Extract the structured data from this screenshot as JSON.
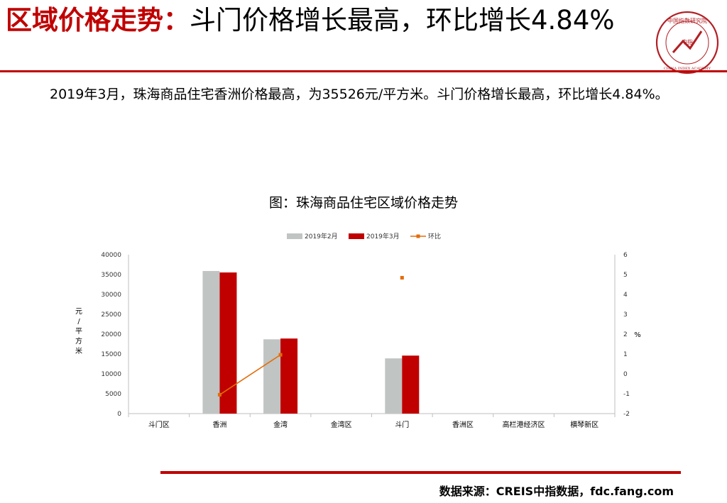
{
  "header": {
    "title_highlight": "区域价格走势：",
    "title_rest": "斗门价格增长最高，环比增长4.84%"
  },
  "logo": {
    "text_cn": "中国指数研究院",
    "text_en": "CHINA INDEX ACADEMY",
    "center_text": "中指",
    "color": "#b21f24"
  },
  "description": "2019年3月，珠海商品住宅香洲价格最高，为35526元/平方米。斗门价格增长最高，环比增长4.84%。",
  "chart_title": "图：珠海商品住宅区域价格走势",
  "chart_data": {
    "type": "bar",
    "categories": [
      "斗门区",
      "香洲",
      "金湾",
      "金湾区",
      "斗门",
      "香洲区",
      "高栏港经济区",
      "横琴新区"
    ],
    "series": [
      {
        "name": "2019年2月",
        "kind": "bar",
        "axis": "left",
        "color": "#c0c4c2",
        "values": [
          null,
          35900,
          18700,
          null,
          13900,
          null,
          null,
          null
        ]
      },
      {
        "name": "2019年3月",
        "kind": "bar",
        "axis": "left",
        "color": "#c00000",
        "values": [
          null,
          35526,
          18900,
          null,
          14600,
          null,
          null,
          null
        ]
      },
      {
        "name": "环比",
        "kind": "line",
        "axis": "right",
        "color": "#e36c09",
        "values": [
          null,
          -1.05,
          0.96,
          null,
          4.84,
          null,
          null,
          null
        ]
      }
    ],
    "ylabel": "元/平方米",
    "y2label": "%",
    "ylim": [
      0,
      40000
    ],
    "y2lim": [
      -2,
      6
    ],
    "yticks": [
      0,
      5000,
      10000,
      15000,
      20000,
      25000,
      30000,
      35000,
      40000
    ],
    "y2ticks": [
      -2,
      -1,
      0,
      1,
      2,
      3,
      4,
      5,
      6
    ],
    "legend": "top"
  },
  "footer": {
    "source": "数据来源：CREIS中指数据，fdc.fang.com"
  }
}
